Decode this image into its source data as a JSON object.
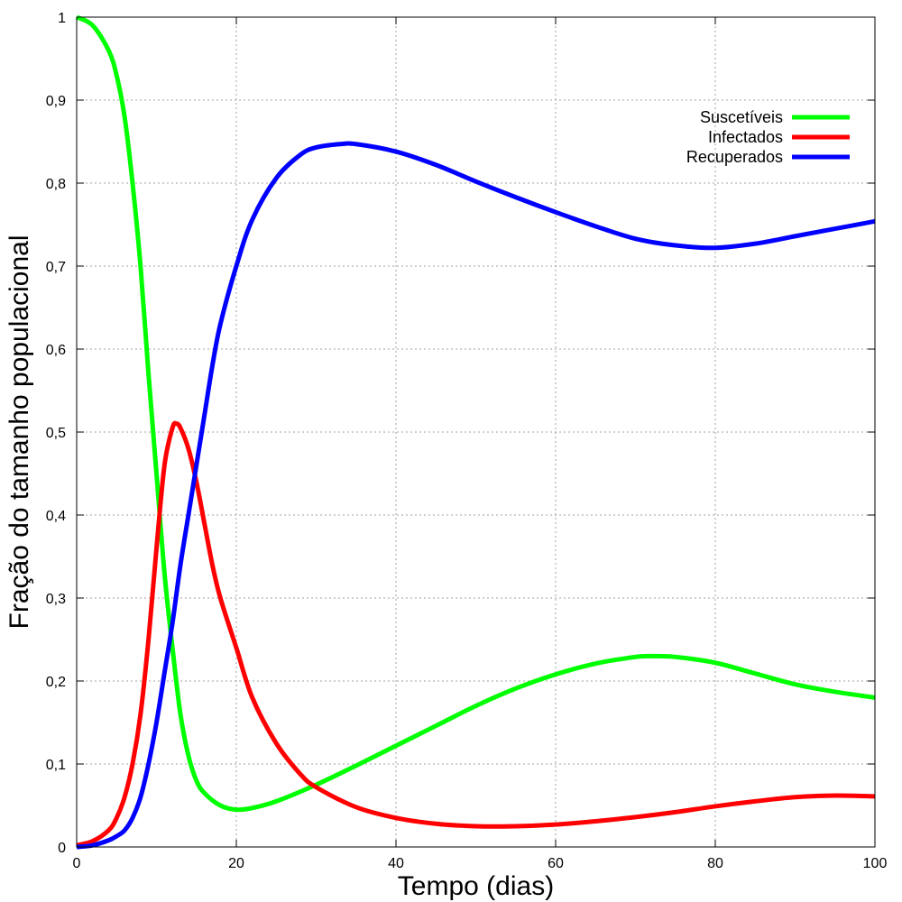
{
  "chart_data": {
    "type": "line",
    "title": "",
    "xlabel": "Tempo (dias)",
    "ylabel": "Fração do tamanho populacional",
    "xlim": [
      0,
      100
    ],
    "ylim": [
      0,
      1
    ],
    "grid": true,
    "legend_position": "top-right",
    "x_ticks": [
      0,
      20,
      40,
      60,
      80,
      100
    ],
    "x_tick_labels": [
      "0",
      "20",
      "40",
      "60",
      "80",
      "100"
    ],
    "y_ticks": [
      0,
      0.1,
      0.2,
      0.3,
      0.4,
      0.5,
      0.6,
      0.7,
      0.8,
      0.9,
      1
    ],
    "y_tick_labels": [
      "0",
      "0,1",
      "0,2",
      "0,3",
      "0,4",
      "0,5",
      "0,6",
      "0,7",
      "0,8",
      "0,9",
      "1"
    ],
    "series": [
      {
        "name": "Suscetíveis",
        "color": "#00ff00",
        "x": [
          0,
          2,
          4,
          5,
          6,
          7,
          8,
          9,
          10,
          11,
          12,
          13,
          14,
          15,
          16,
          18,
          20,
          22,
          25,
          30,
          35,
          40,
          45,
          50,
          55,
          60,
          65,
          70,
          72,
          75,
          80,
          85,
          90,
          95,
          100
        ],
        "y": [
          1.0,
          0.99,
          0.96,
          0.93,
          0.88,
          0.8,
          0.7,
          0.57,
          0.45,
          0.33,
          0.24,
          0.16,
          0.11,
          0.08,
          0.065,
          0.05,
          0.045,
          0.047,
          0.055,
          0.075,
          0.098,
          0.122,
          0.146,
          0.17,
          0.191,
          0.208,
          0.221,
          0.229,
          0.23,
          0.229,
          0.222,
          0.209,
          0.196,
          0.187,
          0.18
        ]
      },
      {
        "name": "Infectados",
        "color": "#ff0000",
        "x": [
          0,
          2,
          4,
          5,
          6,
          7,
          8,
          9,
          10,
          11,
          12,
          12.5,
          13,
          14,
          15,
          16,
          17,
          18,
          20,
          22,
          25,
          28,
          30,
          35,
          40,
          45,
          50,
          55,
          60,
          65,
          70,
          75,
          80,
          85,
          90,
          95,
          100
        ],
        "y": [
          0.002,
          0.007,
          0.02,
          0.035,
          0.06,
          0.1,
          0.16,
          0.25,
          0.36,
          0.46,
          0.505,
          0.51,
          0.505,
          0.48,
          0.44,
          0.39,
          0.34,
          0.3,
          0.24,
          0.18,
          0.125,
          0.088,
          0.072,
          0.048,
          0.035,
          0.028,
          0.025,
          0.025,
          0.027,
          0.031,
          0.036,
          0.042,
          0.049,
          0.055,
          0.06,
          0.062,
          0.061
        ]
      },
      {
        "name": "Recuperados",
        "color": "#0000ff",
        "x": [
          0,
          2,
          4,
          5,
          6,
          7,
          8,
          9,
          10,
          11,
          12,
          13,
          14,
          15,
          16,
          17,
          18,
          20,
          22,
          25,
          28,
          30,
          33,
          35,
          40,
          45,
          50,
          55,
          60,
          65,
          70,
          75,
          80,
          85,
          90,
          95,
          100
        ],
        "y": [
          0.0,
          0.002,
          0.008,
          0.013,
          0.02,
          0.035,
          0.06,
          0.1,
          0.15,
          0.21,
          0.27,
          0.34,
          0.4,
          0.46,
          0.52,
          0.58,
          0.63,
          0.7,
          0.756,
          0.806,
          0.834,
          0.843,
          0.847,
          0.847,
          0.838,
          0.822,
          0.802,
          0.783,
          0.765,
          0.748,
          0.733,
          0.725,
          0.722,
          0.727,
          0.736,
          0.745,
          0.754
        ]
      }
    ]
  }
}
